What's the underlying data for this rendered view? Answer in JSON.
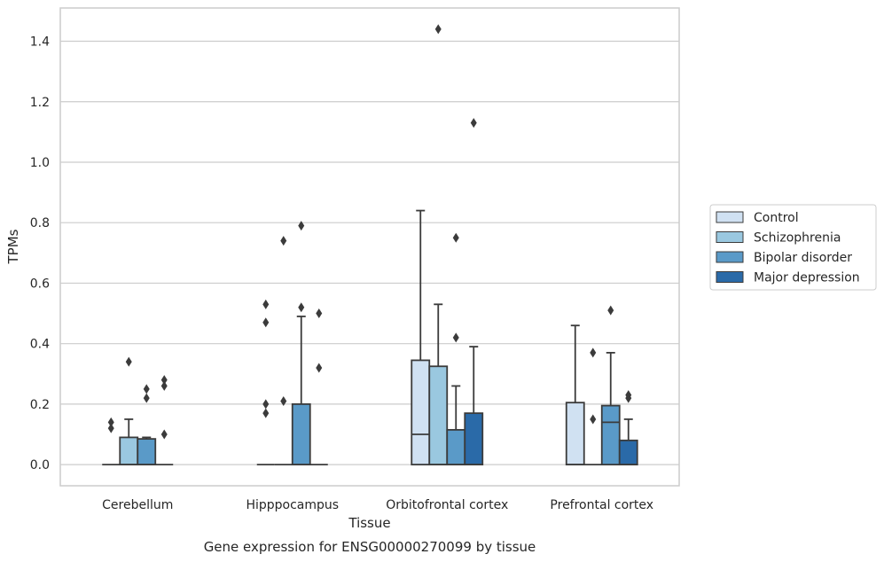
{
  "chart_data": {
    "type": "box",
    "xlabel": "Tissue",
    "ylabel": "TPMs",
    "caption": "Gene expression for ENSG00000270099 by tissue",
    "ylim": [
      -0.07,
      1.51
    ],
    "yticks": [
      0.0,
      0.2,
      0.4,
      0.6,
      0.8,
      1.0,
      1.2,
      1.4
    ],
    "ytick_labels": [
      "0.0",
      "0.2",
      "0.4",
      "0.6",
      "0.8",
      "1.0",
      "1.2",
      "1.4"
    ],
    "grid": "horizontal",
    "legend_position": "right",
    "categories": [
      "Cerebellum",
      "Hipppocampus",
      "Orbitofrontal cortex",
      "Prefrontal cortex"
    ],
    "series": [
      {
        "name": "Control",
        "color": "#d0e1f2",
        "boxes": [
          {
            "q1": 0,
            "median": 0,
            "q3": 0,
            "whislo": 0,
            "whishi": 0,
            "fliers": [
              0.12,
              0.14
            ]
          },
          {
            "q1": 0,
            "median": 0,
            "q3": 0,
            "whislo": 0,
            "whishi": 0,
            "fliers": [
              0.17,
              0.2,
              0.47,
              0.53
            ]
          },
          {
            "q1": 0,
            "median": 0.1,
            "q3": 0.345,
            "whislo": 0,
            "whishi": 0.84,
            "fliers": []
          },
          {
            "q1": 0,
            "median": 0,
            "q3": 0.205,
            "whislo": 0,
            "whishi": 0.46,
            "fliers": []
          }
        ]
      },
      {
        "name": "Schizophrenia",
        "color": "#9ac8e0",
        "boxes": [
          {
            "q1": 0,
            "median": 0,
            "q3": 0.09,
            "whislo": 0,
            "whishi": 0.15,
            "fliers": [
              0.34
            ]
          },
          {
            "q1": 0,
            "median": 0,
            "q3": 0,
            "whislo": 0,
            "whishi": 0,
            "fliers": [
              0.21,
              0.74
            ]
          },
          {
            "q1": 0,
            "median": 0,
            "q3": 0.325,
            "whislo": 0,
            "whishi": 0.53,
            "fliers": [
              1.44
            ]
          },
          {
            "q1": 0,
            "median": 0,
            "q3": 0,
            "whislo": 0,
            "whishi": 0,
            "fliers": [
              0.15,
              0.37
            ]
          }
        ]
      },
      {
        "name": "Bipolar disorder",
        "color": "#5a9ac8",
        "boxes": [
          {
            "q1": 0,
            "median": 0,
            "q3": 0.085,
            "whislo": 0,
            "whishi": 0.09,
            "fliers": [
              0.22,
              0.25
            ]
          },
          {
            "q1": 0,
            "median": 0,
            "q3": 0.2,
            "whislo": 0,
            "whishi": 0.49,
            "fliers": [
              0.52,
              0.79
            ]
          },
          {
            "q1": 0,
            "median": 0,
            "q3": 0.115,
            "whislo": 0,
            "whishi": 0.26,
            "fliers": [
              0.42,
              0.75
            ]
          },
          {
            "q1": 0,
            "median": 0.14,
            "q3": 0.195,
            "whislo": 0,
            "whishi": 0.37,
            "fliers": [
              0.51
            ]
          }
        ]
      },
      {
        "name": "Major depression",
        "color": "#2a6aa8",
        "boxes": [
          {
            "q1": 0,
            "median": 0,
            "q3": 0,
            "whislo": 0,
            "whishi": 0,
            "fliers": [
              0.1,
              0.26,
              0.28
            ]
          },
          {
            "q1": 0,
            "median": 0,
            "q3": 0,
            "whislo": 0,
            "whishi": 0,
            "fliers": [
              0.32,
              0.5
            ]
          },
          {
            "q1": 0,
            "median": 0,
            "q3": 0.17,
            "whislo": 0,
            "whishi": 0.39,
            "fliers": [
              1.13
            ]
          },
          {
            "q1": 0,
            "median": 0,
            "q3": 0.08,
            "whislo": 0,
            "whishi": 0.15,
            "fliers": [
              0.22,
              0.23
            ]
          }
        ]
      }
    ]
  }
}
